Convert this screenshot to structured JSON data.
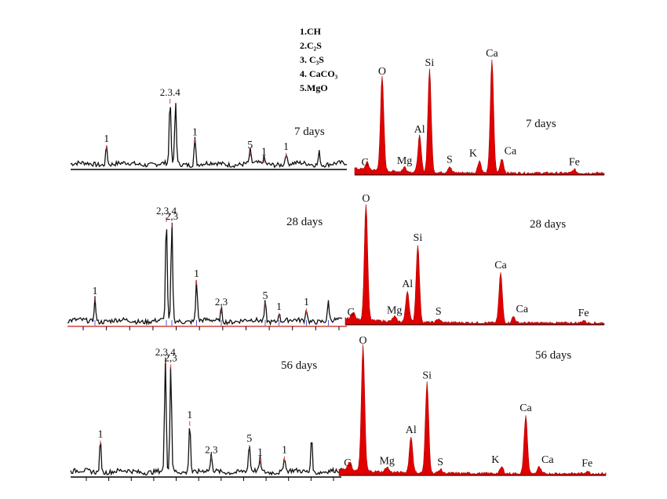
{
  "legend": {
    "items": [
      "1.CH",
      "2.C₂S",
      "3. C₃S",
      "4. CaCO₃",
      "5.MgO"
    ]
  },
  "colors": {
    "xrd_line": "#111111",
    "edx_fill": "#e00000",
    "edx_edge": "#b00000",
    "axis": "#000000",
    "tick_red": "#d04040",
    "tick_blue": "#4a5bd0"
  },
  "chart_data": [
    {
      "type": "line",
      "kind": "XRD",
      "age_label": "7 days",
      "peaks": [
        {
          "x": 0.13,
          "h": 0.3,
          "label": "1"
        },
        {
          "x": 0.36,
          "h": 1.0,
          "label": "2.3.4"
        },
        {
          "x": 0.38,
          "h": 0.95,
          "label": ""
        },
        {
          "x": 0.45,
          "h": 0.4,
          "label": "1"
        },
        {
          "x": 0.65,
          "h": 0.2,
          "label": "5"
        },
        {
          "x": 0.7,
          "h": 0.1,
          "label": "1"
        },
        {
          "x": 0.78,
          "h": 0.18,
          "label": "1"
        },
        {
          "x": 0.9,
          "h": 0.2,
          "label": ""
        }
      ]
    },
    {
      "type": "area",
      "kind": "EDX",
      "age_label": "7 days",
      "peaks": [
        {
          "x": 0.05,
          "h": 0.06,
          "label": "C"
        },
        {
          "x": 0.11,
          "h": 0.78,
          "label": "O"
        },
        {
          "x": 0.2,
          "h": 0.04,
          "label": "Mg"
        },
        {
          "x": 0.26,
          "h": 0.3,
          "label": "Al"
        },
        {
          "x": 0.3,
          "h": 0.85,
          "label": "Si"
        },
        {
          "x": 0.38,
          "h": 0.05,
          "label": "S"
        },
        {
          "x": 0.5,
          "h": 0.1,
          "label": "K"
        },
        {
          "x": 0.55,
          "h": 0.93,
          "label": "Ca"
        },
        {
          "x": 0.59,
          "h": 0.12,
          "label": "Ca"
        },
        {
          "x": 0.88,
          "h": 0.03,
          "label": "Fe"
        }
      ]
    },
    {
      "type": "line",
      "kind": "XRD",
      "age_label": "28 days",
      "peaks": [
        {
          "x": 0.1,
          "h": 0.22,
          "label": "1"
        },
        {
          "x": 0.36,
          "h": 0.95,
          "label": "2,3,4"
        },
        {
          "x": 0.38,
          "h": 0.9,
          "label": "2,3"
        },
        {
          "x": 0.47,
          "h": 0.38,
          "label": "1"
        },
        {
          "x": 0.56,
          "h": 0.12,
          "label": "2,3"
        },
        {
          "x": 0.72,
          "h": 0.18,
          "label": "5"
        },
        {
          "x": 0.77,
          "h": 0.08,
          "label": "1"
        },
        {
          "x": 0.87,
          "h": 0.12,
          "label": "1"
        },
        {
          "x": 0.95,
          "h": 0.18,
          "label": ""
        }
      ]
    },
    {
      "type": "area",
      "kind": "EDX",
      "age_label": "28 days",
      "peaks": [
        {
          "x": 0.03,
          "h": 0.06,
          "label": "C"
        },
        {
          "x": 0.08,
          "h": 0.93,
          "label": "O"
        },
        {
          "x": 0.19,
          "h": 0.04,
          "label": "Mg"
        },
        {
          "x": 0.24,
          "h": 0.25,
          "label": "Al"
        },
        {
          "x": 0.28,
          "h": 0.62,
          "label": "Si"
        },
        {
          "x": 0.36,
          "h": 0.03,
          "label": "S"
        },
        {
          "x": 0.6,
          "h": 0.4,
          "label": "Ca"
        },
        {
          "x": 0.65,
          "h": 0.05,
          "label": "Ca"
        },
        {
          "x": 0.92,
          "h": 0.02,
          "label": "Fe"
        }
      ]
    },
    {
      "type": "line",
      "kind": "XRD",
      "age_label": "56 days",
      "peaks": [
        {
          "x": 0.11,
          "h": 0.28,
          "label": "1"
        },
        {
          "x": 0.35,
          "h": 1.0,
          "label": "2,3,4"
        },
        {
          "x": 0.37,
          "h": 0.95,
          "label": "2,3"
        },
        {
          "x": 0.44,
          "h": 0.45,
          "label": "1"
        },
        {
          "x": 0.52,
          "h": 0.14,
          "label": "2,3"
        },
        {
          "x": 0.66,
          "h": 0.24,
          "label": "5"
        },
        {
          "x": 0.7,
          "h": 0.12,
          "label": "1"
        },
        {
          "x": 0.79,
          "h": 0.14,
          "label": "1"
        },
        {
          "x": 0.89,
          "h": 0.32,
          "label": ""
        }
      ]
    },
    {
      "type": "area",
      "kind": "EDX",
      "age_label": "56 days",
      "peaks": [
        {
          "x": 0.04,
          "h": 0.06,
          "label": "C"
        },
        {
          "x": 0.09,
          "h": 0.97,
          "label": "O"
        },
        {
          "x": 0.18,
          "h": 0.04,
          "label": "Mg"
        },
        {
          "x": 0.27,
          "h": 0.28,
          "label": "Al"
        },
        {
          "x": 0.33,
          "h": 0.7,
          "label": "Si"
        },
        {
          "x": 0.38,
          "h": 0.03,
          "label": "S"
        },
        {
          "x": 0.61,
          "h": 0.05,
          "label": "K"
        },
        {
          "x": 0.7,
          "h": 0.45,
          "label": "Ca"
        },
        {
          "x": 0.75,
          "h": 0.05,
          "label": "Ca"
        },
        {
          "x": 0.93,
          "h": 0.02,
          "label": "Fe"
        }
      ]
    }
  ]
}
